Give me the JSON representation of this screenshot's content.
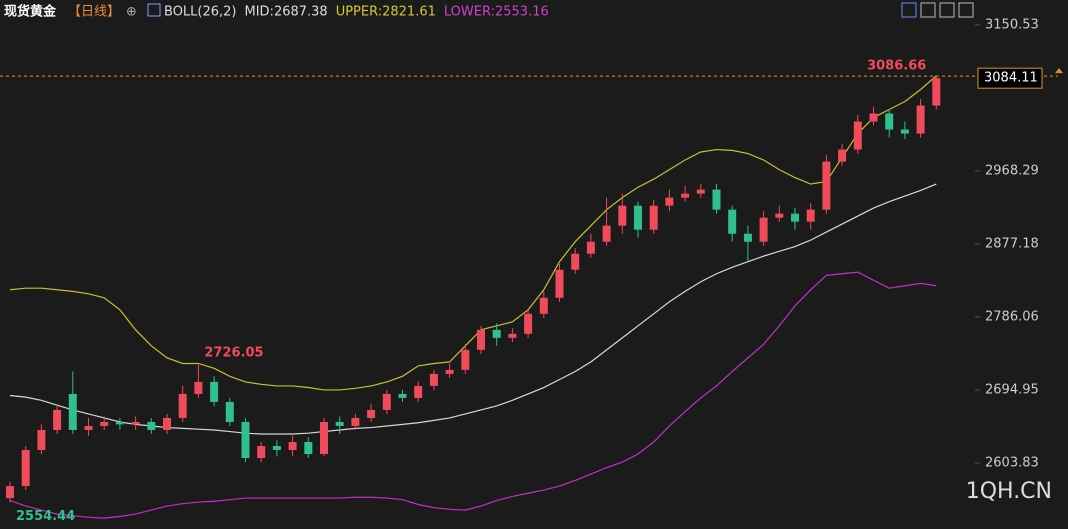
{
  "chart_data": {
    "type": "candlestick",
    "title": "现货黄金",
    "period": "【日线】",
    "legend": [
      {
        "text": "BOLL(26,2)",
        "color": "#dddddd"
      },
      {
        "text": "MID:2687.38",
        "color": "#dddddd"
      },
      {
        "text": "UPPER:2821.61",
        "color": "#d4c832"
      },
      {
        "text": "LOWER:2553.16",
        "color": "#d040d0"
      }
    ],
    "watermark": "1QH.CN",
    "ylim": [
      2521.4,
      3181.7
    ],
    "yticks": [
      2603.83,
      2694.95,
      2786.06,
      2877.18,
      2968.29,
      3150.53
    ],
    "up_color": "#ef4b5b",
    "down_color": "#2fc08c",
    "open": [
      2560,
      2575,
      2620,
      2645,
      2690,
      2645,
      2650,
      2655,
      2652,
      2655,
      2645,
      2660,
      2690,
      2705,
      2680,
      2655,
      2610,
      2625,
      2620,
      2630,
      2615,
      2655,
      2650,
      2660,
      2670,
      2690,
      2685,
      2700,
      2715,
      2720,
      2745,
      2770,
      2760,
      2765,
      2790,
      2810,
      2845,
      2865,
      2880,
      2900,
      2925,
      2895,
      2925,
      2935,
      2940,
      2945,
      2920,
      2890,
      2880,
      2910,
      2915,
      2905,
      2920,
      2980,
      2995,
      3030,
      3040,
      3020,
      3015,
      3050
    ],
    "high": [
      2580,
      2625,
      2652,
      2676,
      2718,
      2660,
      2662,
      2660,
      2662,
      2660,
      2665,
      2700,
      2726.05,
      2712,
      2685,
      2660,
      2630,
      2632,
      2638,
      2636,
      2660,
      2662,
      2665,
      2678,
      2695,
      2695,
      2706,
      2720,
      2728,
      2752,
      2775,
      2778,
      2772,
      2795,
      2818,
      2852,
      2872,
      2890,
      2935,
      2940,
      2930,
      2932,
      2945,
      2950,
      2952,
      2952,
      2925,
      2900,
      2918,
      2925,
      2922,
      2928,
      2988,
      3002,
      3038,
      3048,
      3045,
      3030,
      3058,
      3086.66
    ],
    "low": [
      2554.44,
      2570,
      2615,
      2640,
      2640,
      2638,
      2645,
      2645,
      2645,
      2640,
      2640,
      2655,
      2685,
      2675,
      2650,
      2605,
      2605,
      2612,
      2612,
      2610,
      2612,
      2640,
      2645,
      2655,
      2665,
      2680,
      2680,
      2695,
      2710,
      2715,
      2740,
      2750,
      2755,
      2760,
      2785,
      2805,
      2840,
      2860,
      2875,
      2890,
      2885,
      2890,
      2918,
      2930,
      2935,
      2915,
      2880,
      2855,
      2875,
      2905,
      2895,
      2895,
      2915,
      2975,
      2990,
      3025,
      3010,
      3008,
      3010,
      3045
    ],
    "close": [
      2575,
      2620,
      2645,
      2670,
      2645,
      2650,
      2655,
      2652,
      2655,
      2645,
      2660,
      2690,
      2705,
      2680,
      2655,
      2610,
      2625,
      2620,
      2630,
      2615,
      2655,
      2650,
      2660,
      2670,
      2690,
      2685,
      2700,
      2715,
      2720,
      2745,
      2770,
      2760,
      2765,
      2790,
      2810,
      2845,
      2865,
      2880,
      2900,
      2925,
      2895,
      2925,
      2935,
      2940,
      2945,
      2920,
      2890,
      2880,
      2910,
      2915,
      2905,
      2920,
      2980,
      2995,
      3030,
      3040,
      3020,
      3015,
      3050,
      3084.11
    ],
    "series": [
      {
        "color": "#c8c030",
        "values": [
          2820,
          2822,
          2822,
          2820,
          2818,
          2815,
          2810,
          2795,
          2770,
          2750,
          2735,
          2728,
          2728,
          2722,
          2712,
          2705,
          2702,
          2700,
          2700,
          2698,
          2695,
          2695,
          2697,
          2700,
          2705,
          2712,
          2725,
          2728,
          2730,
          2750,
          2770,
          2775,
          2780,
          2795,
          2820,
          2855,
          2880,
          2900,
          2920,
          2935,
          2948,
          2958,
          2970,
          2982,
          2992,
          2995,
          2994,
          2990,
          2982,
          2970,
          2960,
          2952,
          2955,
          2985,
          3015,
          3035,
          3045,
          3055,
          3070,
          3087
        ]
      },
      {
        "color": "#d8d8d8",
        "values": [
          2688,
          2686,
          2682,
          2676,
          2670,
          2665,
          2660,
          2655,
          2652,
          2650,
          2648,
          2647,
          2646,
          2645,
          2643,
          2641,
          2640,
          2640,
          2640,
          2641,
          2643,
          2645,
          2647,
          2648,
          2650,
          2652,
          2654,
          2657,
          2660,
          2665,
          2670,
          2675,
          2682,
          2690,
          2698,
          2708,
          2718,
          2730,
          2745,
          2760,
          2775,
          2790,
          2805,
          2818,
          2830,
          2840,
          2848,
          2855,
          2862,
          2868,
          2874,
          2882,
          2892,
          2902,
          2912,
          2922,
          2930,
          2937,
          2944,
          2952
        ]
      },
      {
        "color": "#c030c8",
        "values": [
          2557,
          2550,
          2545,
          2540,
          2538,
          2536,
          2535,
          2537,
          2540,
          2545,
          2550,
          2553,
          2555,
          2556,
          2558,
          2560,
          2560,
          2560,
          2560,
          2560,
          2560,
          2560,
          2561,
          2561,
          2560,
          2558,
          2552,
          2548,
          2546,
          2545,
          2550,
          2557,
          2562,
          2566,
          2570,
          2575,
          2582,
          2590,
          2598,
          2605,
          2615,
          2630,
          2650,
          2668,
          2685,
          2700,
          2718,
          2735,
          2752,
          2775,
          2800,
          2820,
          2838,
          2840,
          2842,
          2832,
          2822,
          2825,
          2828,
          2825
        ]
      }
    ]
  }
}
